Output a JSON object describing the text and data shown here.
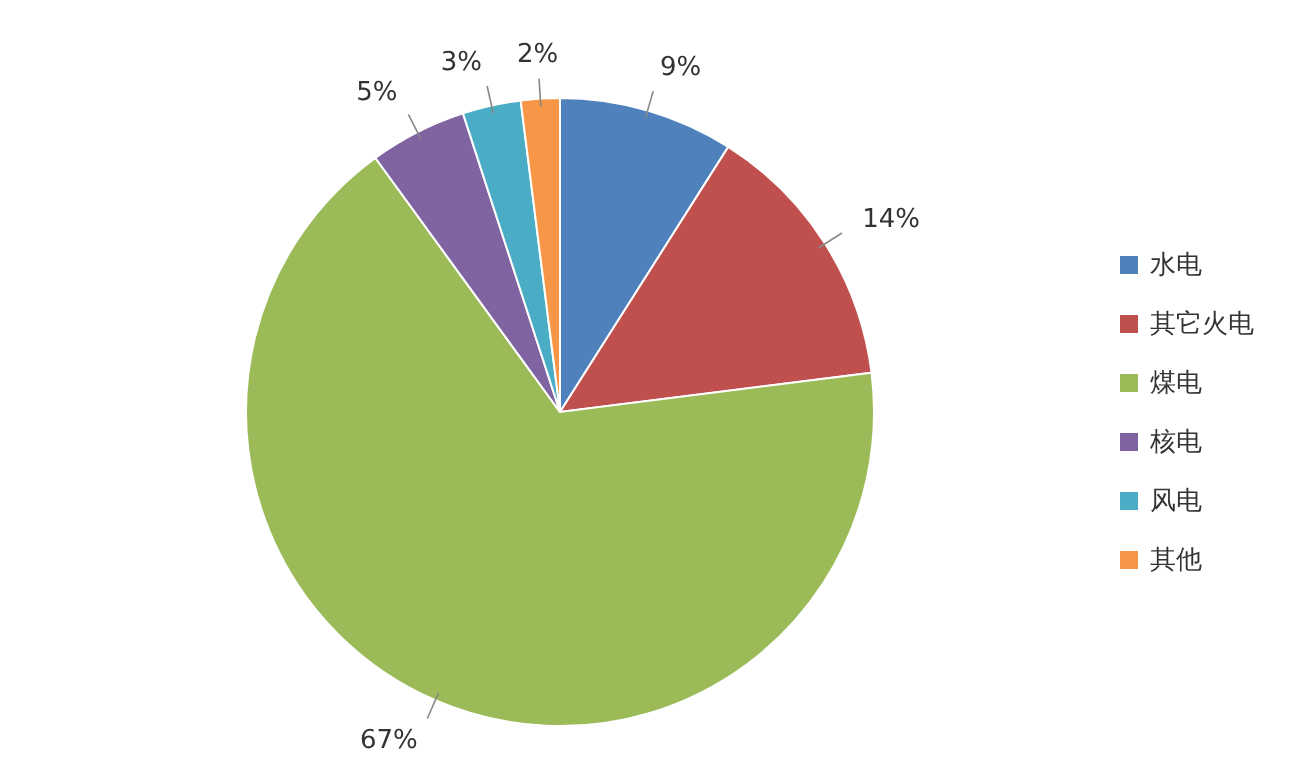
{
  "chart_data": {
    "type": "pie",
    "categories": [
      "水电",
      "其它火电",
      "煤电",
      "核电",
      "风电",
      "其他"
    ],
    "values": [
      9,
      14,
      67,
      5,
      3,
      2
    ],
    "colors": [
      "#4f81bd",
      "#c0504d",
      "#9bbb59",
      "#8064a2",
      "#4bacc6",
      "#f79646"
    ],
    "value_labels": [
      "9%",
      "14%",
      "67%",
      "5%",
      "3%",
      "2%"
    ],
    "legend": "right"
  }
}
